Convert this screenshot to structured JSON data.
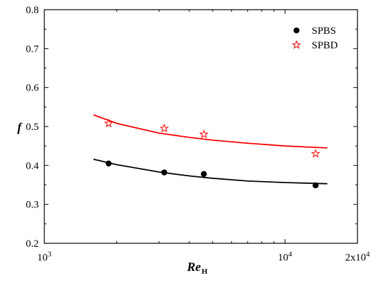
{
  "chart_data": {
    "type": "scatter",
    "xlabel": "Re",
    "xlabel_sub": "H",
    "ylabel": "f",
    "x_scale": "log",
    "xlim": [
      1000,
      20000
    ],
    "ylim": [
      0.2,
      0.8
    ],
    "x_ticks": [
      {
        "value": 1000,
        "label": "10",
        "sup": "3"
      },
      {
        "value": 10000,
        "label": "10",
        "sup": "4"
      },
      {
        "value": 20000,
        "label": "2x10",
        "sup": "4"
      }
    ],
    "y_ticks": [
      {
        "value": 0.2,
        "label": "0.2"
      },
      {
        "value": 0.3,
        "label": "0.3"
      },
      {
        "value": 0.4,
        "label": "0.4"
      },
      {
        "value": 0.5,
        "label": "0.5"
      },
      {
        "value": 0.6,
        "label": "0.6"
      },
      {
        "value": 0.7,
        "label": "0.7"
      },
      {
        "value": 0.8,
        "label": "0.8"
      }
    ],
    "grid": false,
    "legend_position": "top-right",
    "series": [
      {
        "name": "SPBS",
        "marker": "filled-circle",
        "color": "#000000",
        "x": [
          1850,
          3150,
          4600,
          13400
        ],
        "y": [
          0.405,
          0.382,
          0.378,
          0.349
        ],
        "fit": {
          "color": "#000000",
          "x": [
            1600,
            2000,
            3000,
            4000,
            5000,
            7000,
            10000,
            15000
          ],
          "y": [
            0.416,
            0.402,
            0.383,
            0.373,
            0.367,
            0.36,
            0.356,
            0.353
          ]
        }
      },
      {
        "name": "SPBD",
        "marker": "open-star",
        "color": "#ff0000",
        "x": [
          1850,
          3150,
          4600,
          13400
        ],
        "y": [
          0.508,
          0.495,
          0.48,
          0.43
        ],
        "fit": {
          "color": "#ff0000",
          "x": [
            1600,
            2000,
            3000,
            4000,
            5000,
            7000,
            10000,
            15000
          ],
          "y": [
            0.53,
            0.508,
            0.483,
            0.472,
            0.465,
            0.457,
            0.45,
            0.445
          ]
        }
      }
    ]
  }
}
